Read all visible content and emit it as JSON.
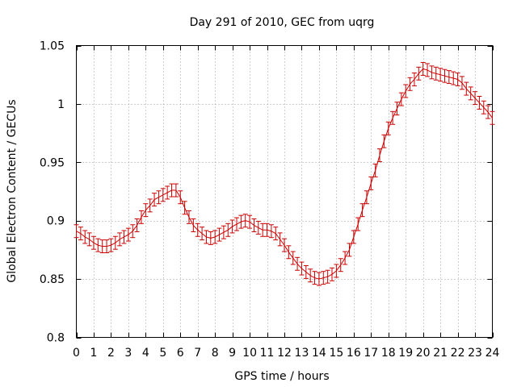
{
  "chart_data": {
    "type": "line",
    "title": "Day 291 of 2010, GEC from uqrg",
    "xlabel": "GPS time / hours",
    "ylabel": "Global Electron Content / GECUs",
    "xlim": [
      0,
      24
    ],
    "ylim": [
      0.8,
      1.05
    ],
    "x_ticks": [
      0,
      1,
      2,
      3,
      4,
      5,
      6,
      7,
      8,
      9,
      10,
      11,
      12,
      13,
      14,
      15,
      16,
      17,
      18,
      19,
      20,
      21,
      22,
      23,
      24
    ],
    "y_ticks": [
      0.8,
      0.85,
      0.9,
      0.95,
      1,
      1.05
    ],
    "y_tick_labels": [
      "0.8",
      "0.85",
      "0.9",
      "0.95",
      "1",
      "1.05"
    ],
    "grid": true,
    "grid_style": "dotted",
    "series_color": "#cc0000",
    "error_bar_half_width": 0.0055,
    "series": [
      {
        "x": [
          0,
          0.25,
          0.5,
          0.75,
          1,
          1.25,
          1.5,
          1.75,
          2,
          2.25,
          2.5,
          2.75,
          3,
          3.25,
          3.5,
          3.75,
          4,
          4.25,
          4.5,
          4.75,
          5,
          5.25,
          5.5,
          5.75,
          6,
          6.25,
          6.5,
          6.75,
          7,
          7.25,
          7.5,
          7.75,
          8,
          8.25,
          8.5,
          8.75,
          9,
          9.25,
          9.5,
          9.75,
          10,
          10.25,
          10.5,
          10.75,
          11,
          11.25,
          11.5,
          11.75,
          12,
          12.25,
          12.5,
          12.75,
          13,
          13.25,
          13.5,
          13.75,
          14,
          14.25,
          14.5,
          14.75,
          15,
          15.25,
          15.5,
          15.75,
          16,
          16.25,
          16.5,
          16.75,
          17,
          17.25,
          17.5,
          17.75,
          18,
          18.25,
          18.5,
          18.75,
          19,
          19.25,
          19.5,
          19.75,
          20,
          20.25,
          20.5,
          20.75,
          21,
          21.25,
          21.5,
          21.75,
          22,
          22.25,
          22.5,
          22.75,
          23,
          23.25,
          23.5,
          23.75,
          24
        ],
        "y": [
          0.891,
          0.889,
          0.886,
          0.884,
          0.881,
          0.879,
          0.878,
          0.878,
          0.879,
          0.881,
          0.884,
          0.886,
          0.888,
          0.891,
          0.896,
          0.903,
          0.909,
          0.913,
          0.918,
          0.92,
          0.922,
          0.924,
          0.926,
          0.926,
          0.92,
          0.911,
          0.903,
          0.896,
          0.892,
          0.889,
          0.886,
          0.885,
          0.886,
          0.888,
          0.89,
          0.892,
          0.895,
          0.897,
          0.899,
          0.9,
          0.899,
          0.896,
          0.894,
          0.892,
          0.892,
          0.891,
          0.889,
          0.884,
          0.879,
          0.873,
          0.868,
          0.863,
          0.859,
          0.856,
          0.853,
          0.851,
          0.85,
          0.851,
          0.852,
          0.854,
          0.857,
          0.862,
          0.868,
          0.875,
          0.886,
          0.897,
          0.909,
          0.92,
          0.932,
          0.943,
          0.956,
          0.968,
          0.979,
          0.988,
          0.996,
          1.004,
          1.011,
          1.017,
          1.021,
          1.026,
          1.03,
          1.029,
          1.027,
          1.026,
          1.025,
          1.024,
          1.023,
          1.022,
          1.021,
          1.018,
          1.013,
          1.009,
          1.005,
          1.001,
          0.997,
          0.993,
          0.988
        ]
      }
    ]
  }
}
